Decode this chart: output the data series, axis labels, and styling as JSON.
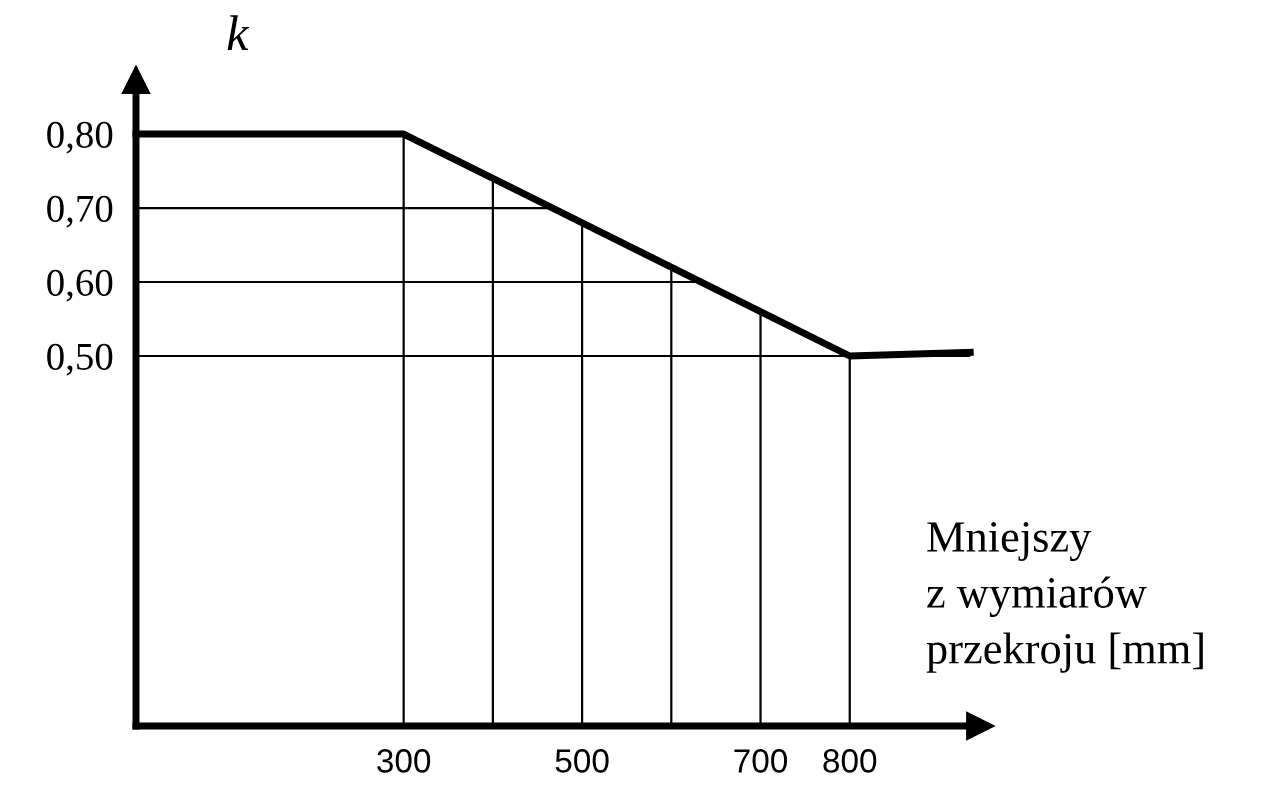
{
  "chart_data": {
    "type": "line",
    "ylabel": "k",
    "xlabel": "Mniejszy\nz wymiarów\nprzekroju [mm]",
    "x": [
      0,
      300,
      800,
      935
    ],
    "series": [
      {
        "color": "#000000",
        "values": [
          0.8,
          0.8,
          0.5,
          0.505
        ]
      }
    ],
    "xlim": [
      0,
      946
    ],
    "ylim": [
      0,
      0.873
    ],
    "xticks": [
      300,
      {
        "value": 400,
        "label": null
      },
      500,
      {
        "value": 600,
        "label": null
      },
      700,
      800
    ],
    "yticks": [
      {
        "value": 0.5,
        "label": "0,50"
      },
      {
        "value": 0.6,
        "label": "0,60"
      },
      {
        "value": 0.7,
        "label": "0,70"
      },
      {
        "value": 0.8,
        "label": "0,80"
      }
    ],
    "grid": true,
    "marker": "none",
    "line_style": "solid"
  }
}
